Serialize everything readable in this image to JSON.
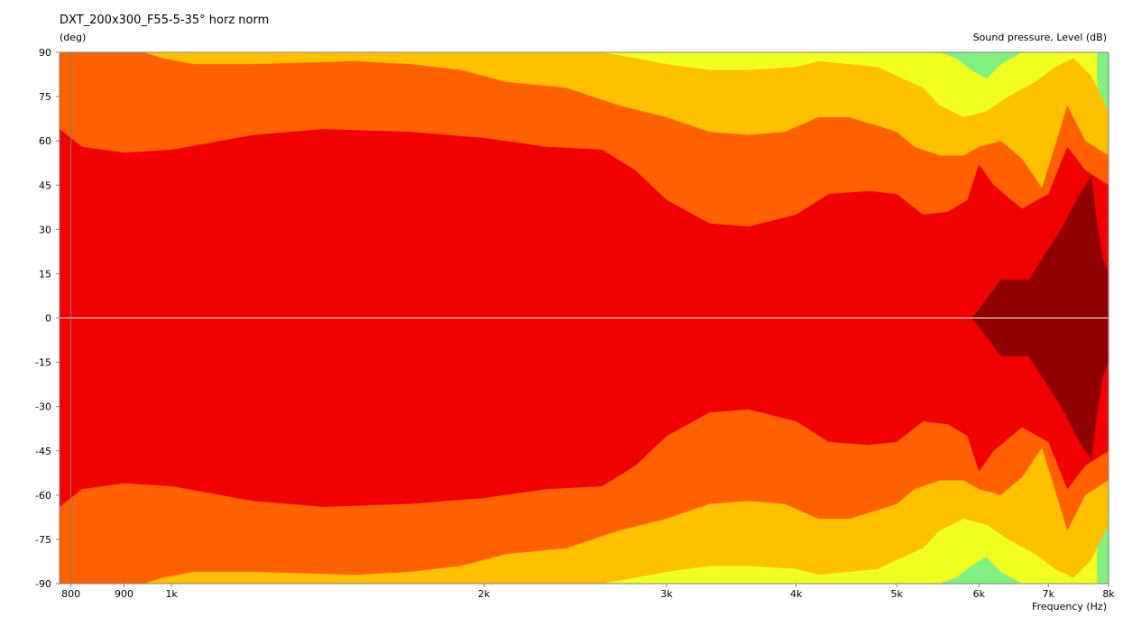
{
  "chart_data": {
    "type": "heatmap",
    "title": "DXT_200x300_F55-5-35° horz norm",
    "ylabel": "(deg)",
    "colorbar_label": "Sound pressure, Level  (dB)",
    "xlabel": "Frequency  (Hz)",
    "x_scale": "log",
    "xlim": [
      780,
      8000
    ],
    "ylim": [
      -90,
      90
    ],
    "x_ticks": [
      {
        "value": 800,
        "label": "800"
      },
      {
        "value": 900,
        "label": "900"
      },
      {
        "value": 1000,
        "label": "1k"
      },
      {
        "value": 2000,
        "label": "2k"
      },
      {
        "value": 3000,
        "label": "3k"
      },
      {
        "value": 4000,
        "label": "4k"
      },
      {
        "value": 5000,
        "label": "5k"
      },
      {
        "value": 6000,
        "label": "6k"
      },
      {
        "value": 7000,
        "label": "7k"
      },
      {
        "value": 8000,
        "label": "8k"
      }
    ],
    "y_ticks": [
      {
        "value": 90,
        "label": "90"
      },
      {
        "value": 75,
        "label": "75"
      },
      {
        "value": 60,
        "label": "60"
      },
      {
        "value": 45,
        "label": "45"
      },
      {
        "value": 30,
        "label": "30"
      },
      {
        "value": 15,
        "label": "15"
      },
      {
        "value": 0,
        "label": "0"
      },
      {
        "value": -15,
        "label": "-15"
      },
      {
        "value": -30,
        "label": "-30"
      },
      {
        "value": -45,
        "label": "-45"
      },
      {
        "value": -60,
        "label": "-60"
      },
      {
        "value": -75,
        "label": "-75"
      },
      {
        "value": -90,
        "label": "-90"
      }
    ],
    "colors": {
      "background_band": "#80f080",
      "band_yellow": "#f0ff20",
      "band_amber": "#ffc000",
      "band_orange": "#ff6000",
      "band_red": "#f00000",
      "band_darkred": "#900000",
      "grid": "#ffffff",
      "axis": "#808080"
    },
    "contours": [
      {
        "name": "yellow",
        "color": "#f0ff20",
        "points": [
          [
            780,
            90
          ],
          [
            1000,
            90
          ],
          [
            2000,
            90
          ],
          [
            2600,
            90
          ],
          [
            3000,
            90
          ],
          [
            4000,
            90
          ],
          [
            5000,
            90
          ],
          [
            5500,
            90
          ],
          [
            5700,
            88
          ],
          [
            5900,
            84
          ],
          [
            6100,
            81
          ],
          [
            6300,
            86
          ],
          [
            6600,
            90
          ],
          [
            7000,
            90
          ],
          [
            7500,
            90
          ],
          [
            7800,
            90
          ],
          [
            7800,
            75
          ],
          [
            7900,
            65
          ],
          [
            8000,
            62
          ]
        ]
      },
      {
        "name": "amber",
        "color": "#ffc000",
        "points": [
          [
            780,
            90
          ],
          [
            1000,
            90
          ],
          [
            2000,
            90
          ],
          [
            2400,
            90
          ],
          [
            2600,
            90
          ],
          [
            2800,
            88
          ],
          [
            3000,
            86
          ],
          [
            3300,
            84
          ],
          [
            3600,
            84
          ],
          [
            4000,
            85
          ],
          [
            4200,
            87
          ],
          [
            4500,
            86
          ],
          [
            4800,
            85
          ],
          [
            5000,
            82
          ],
          [
            5300,
            78
          ],
          [
            5500,
            72
          ],
          [
            5800,
            68
          ],
          [
            6100,
            70
          ],
          [
            6400,
            75
          ],
          [
            6800,
            80
          ],
          [
            7100,
            85
          ],
          [
            7400,
            88
          ],
          [
            7700,
            82
          ],
          [
            8000,
            70
          ]
        ]
      },
      {
        "name": "orange",
        "color": "#ff6000",
        "points": [
          [
            780,
            90
          ],
          [
            940,
            90
          ],
          [
            980,
            88
          ],
          [
            1050,
            86
          ],
          [
            1200,
            86
          ],
          [
            1500,
            87
          ],
          [
            1700,
            86
          ],
          [
            1900,
            84
          ],
          [
            2100,
            80
          ],
          [
            2400,
            78
          ],
          [
            2700,
            72
          ],
          [
            3000,
            68
          ],
          [
            3300,
            63
          ],
          [
            3600,
            62
          ],
          [
            3900,
            63
          ],
          [
            4200,
            68
          ],
          [
            4500,
            68
          ],
          [
            4800,
            65
          ],
          [
            5000,
            63
          ],
          [
            5200,
            58
          ],
          [
            5500,
            55
          ],
          [
            5800,
            55
          ],
          [
            6000,
            58
          ],
          [
            6300,
            60
          ],
          [
            6600,
            54
          ],
          [
            6900,
            44
          ],
          [
            7100,
            58
          ],
          [
            7300,
            72
          ],
          [
            7600,
            60
          ],
          [
            8000,
            55
          ]
        ]
      },
      {
        "name": "red",
        "color": "#f00000",
        "points": [
          [
            780,
            64
          ],
          [
            820,
            58
          ],
          [
            900,
            56
          ],
          [
            1000,
            57
          ],
          [
            1200,
            62
          ],
          [
            1400,
            64
          ],
          [
            1700,
            63
          ],
          [
            2000,
            61
          ],
          [
            2300,
            58
          ],
          [
            2600,
            57
          ],
          [
            2800,
            50
          ],
          [
            3000,
            40
          ],
          [
            3300,
            32
          ],
          [
            3600,
            31
          ],
          [
            4000,
            35
          ],
          [
            4300,
            42
          ],
          [
            4700,
            43
          ],
          [
            5000,
            42
          ],
          [
            5300,
            35
          ],
          [
            5600,
            36
          ],
          [
            5850,
            40
          ],
          [
            6000,
            52
          ],
          [
            6200,
            45
          ],
          [
            6600,
            37
          ],
          [
            7000,
            42
          ],
          [
            7300,
            58
          ],
          [
            7600,
            50
          ],
          [
            8000,
            45
          ]
        ]
      },
      {
        "name": "darkred",
        "color": "#900000",
        "points": [
          [
            780,
            0
          ],
          [
            5900,
            0
          ],
          [
            6000,
            3
          ],
          [
            6300,
            13
          ],
          [
            6700,
            13
          ],
          [
            6900,
            20
          ],
          [
            7200,
            30
          ],
          [
            7500,
            42
          ],
          [
            7700,
            48
          ],
          [
            7800,
            32
          ],
          [
            7900,
            20
          ],
          [
            8000,
            15
          ]
        ]
      }
    ]
  }
}
